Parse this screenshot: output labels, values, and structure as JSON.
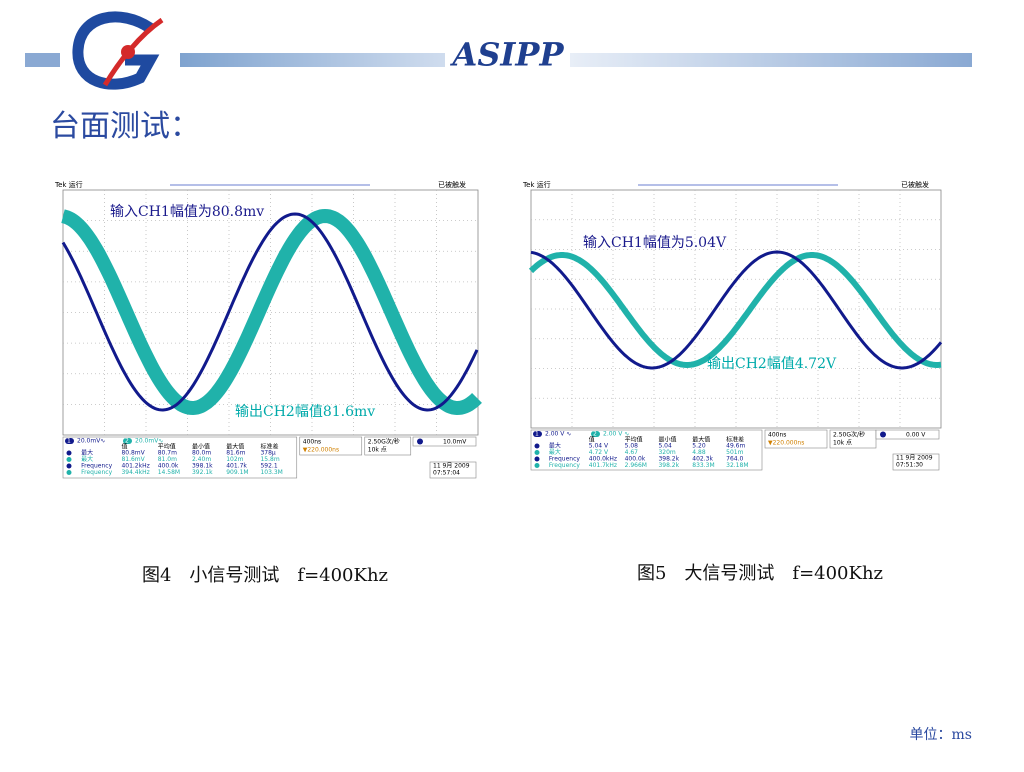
{
  "header": {
    "title": "ASIPP"
  },
  "heading": "台面测试：",
  "figures": [
    {
      "status": "Tek 运行",
      "trigger_state": "已被触发",
      "annotations": [
        "输入CH1幅值为80.8mv",
        "输出CH2幅值81.6mv"
      ],
      "channel_numbers": [
        "1",
        "2"
      ],
      "channels": [
        "20.0mV∿",
        "20.0mV∿"
      ],
      "table": {
        "header": [
          "值",
          "平均值",
          "最小值",
          "最大值",
          "标准差"
        ],
        "rows": [
          [
            "最大",
            "80.8mV",
            "80.7m",
            "80.0m",
            "81.6m",
            "378μ"
          ],
          [
            "最大",
            "81.6mV",
            "81.0m",
            "2.40m",
            "102m",
            "15.8m"
          ],
          [
            "Frequency",
            "401.2kHz",
            "400.0k",
            "398.1k",
            "401.7k",
            "592.1"
          ],
          [
            "Frequency",
            "394.4kHz",
            "14.58M",
            "392.1k",
            "909.1M",
            "103.3M"
          ]
        ]
      },
      "timebase": "400ns",
      "position": "▼220.000ns",
      "sample_rate": "2.50G次/秒",
      "record": "10k 点",
      "trigger_level": "10.0mV",
      "date": "11 9月 2009",
      "time": "07:57:04",
      "caption": "图4　小信号测试　f=400Khz"
    },
    {
      "status": "Tek 运行",
      "trigger_state": "已被触发",
      "annotations": [
        "输入CH1幅值为5.04V",
        "输出CH2幅值4.72V"
      ],
      "channel_numbers": [
        "1",
        "2"
      ],
      "channels": [
        "2.00 V ∿",
        "2.00 V ∿"
      ],
      "table": {
        "header": [
          "值",
          "平均值",
          "最小值",
          "最大值",
          "标准差"
        ],
        "rows": [
          [
            "最大",
            "5.04 V",
            "5.08",
            "5.04",
            "5.20",
            "49.6m"
          ],
          [
            "最大",
            "4.72 V",
            "4.67",
            "320m",
            "4.88",
            "501m"
          ],
          [
            "Frequency",
            "400.0kHz",
            "400.0k",
            "398.2k",
            "402.3k",
            "764.0"
          ],
          [
            "Frequency",
            "401.7kHz",
            "2.966M",
            "398.2k",
            "833.3M",
            "32.18M"
          ]
        ]
      },
      "timebase": "400ns",
      "position": "▼220.000ns",
      "sample_rate": "2.50G次/秒",
      "record": "10k 点",
      "trigger_level": "0.00 V",
      "date": "11 9月 2009",
      "time": "07:51:30",
      "caption": "图5　大信号测试　f=400Khz"
    }
  ],
  "footer": "单位：ms"
}
